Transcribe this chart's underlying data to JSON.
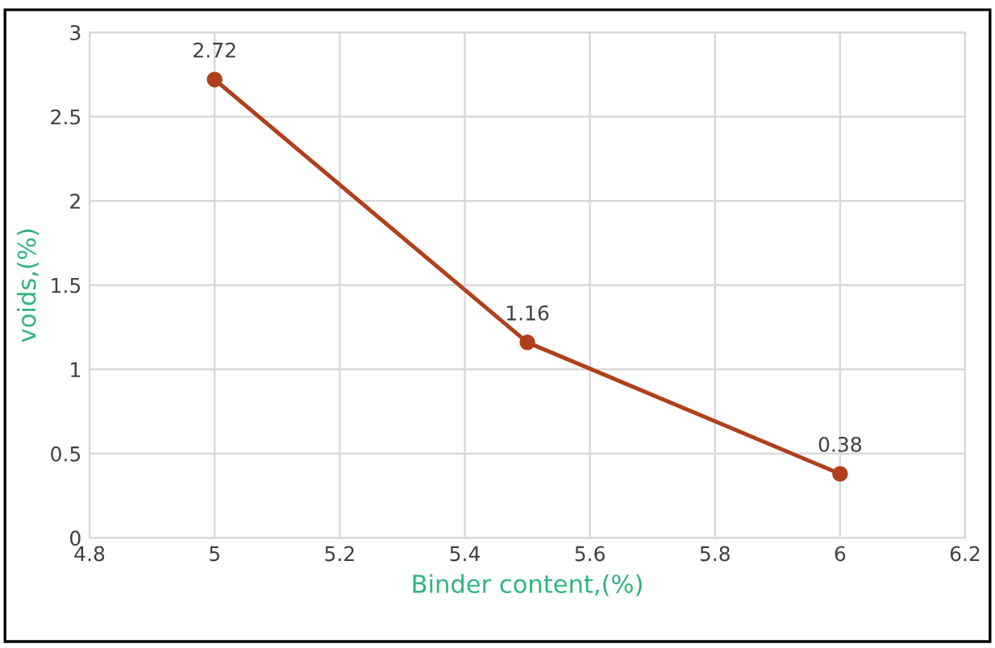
{
  "chart_data": {
    "type": "line",
    "xlabel": "Binder content,(%)",
    "ylabel": "voids,(%)",
    "x": [
      5,
      5.5,
      6
    ],
    "series": [
      {
        "color": "#b0401c",
        "values": [
          2.72,
          1.16,
          0.38
        ]
      }
    ],
    "xlim": [
      4.8,
      6.2
    ],
    "xticks": [
      4.8,
      5,
      5.2,
      5.4,
      5.6,
      5.8,
      6,
      6.2
    ],
    "ylim": [
      0,
      3
    ],
    "yticks": [
      0,
      0.5,
      1,
      1.5,
      2,
      2.5,
      3
    ],
    "grid": true,
    "marker": "circle",
    "line_style": "solid",
    "data_labels": true
  }
}
